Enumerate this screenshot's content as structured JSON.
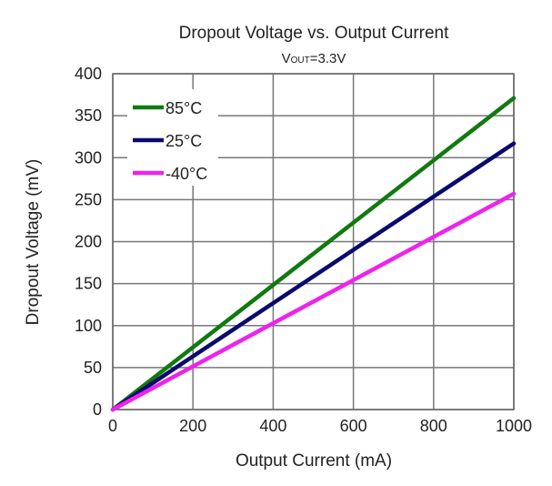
{
  "chart_data": {
    "type": "line",
    "title": "Dropout Voltage vs. Output Current",
    "subtitle": {
      "main": "V",
      "sub": "OUT",
      "rest": "=3.3V"
    },
    "xlabel": "Output Current (mA)",
    "ylabel": "Dropout Voltage (mV)",
    "xlim": [
      0,
      1000
    ],
    "ylim": [
      0,
      400
    ],
    "xticks": [
      0,
      200,
      400,
      600,
      800,
      1000
    ],
    "yticks": [
      0,
      50,
      100,
      150,
      200,
      250,
      300,
      350,
      400
    ],
    "grid": true,
    "legend_position": "top-left",
    "series": [
      {
        "name": "85°C",
        "color": "#107a10",
        "x": [
          0,
          1000
        ],
        "y": [
          0,
          371
        ]
      },
      {
        "name": "25°C",
        "color": "#0a0a6e",
        "x": [
          0,
          1000
        ],
        "y": [
          0,
          317
        ]
      },
      {
        "name": "-40°C",
        "color": "#ee22ee",
        "x": [
          0,
          1000
        ],
        "y": [
          0,
          257
        ]
      }
    ]
  }
}
